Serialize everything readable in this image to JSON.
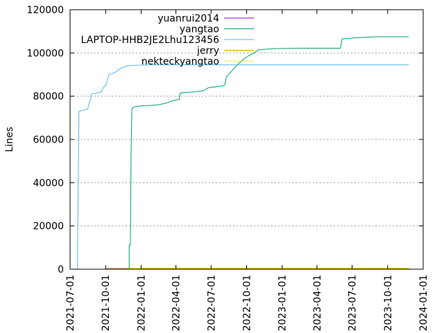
{
  "chart_data": {
    "type": "line",
    "title": "",
    "xlabel": "",
    "ylabel": "Lines",
    "x_type": "date",
    "xlim": [
      "2021-07-01",
      "2024-01-01"
    ],
    "ylim": [
      0,
      120000
    ],
    "y_ticks": [
      0,
      20000,
      40000,
      60000,
      80000,
      100000,
      120000
    ],
    "y_tick_labels": [
      "0",
      "20000",
      "40000",
      "60000",
      "80000",
      "100000",
      "120000"
    ],
    "x_ticks": [
      "2021-07-01",
      "2021-10-01",
      "2022-01-01",
      "2022-04-01",
      "2022-07-01",
      "2022-10-01",
      "2023-01-01",
      "2023-04-01",
      "2023-07-01",
      "2023-10-01",
      "2024-01-01"
    ],
    "x_tick_labels": [
      "2021-07-01",
      "2021-10-01",
      "2022-01-01",
      "2022-04-01",
      "2022-07-01",
      "2022-10-01",
      "2023-01-01",
      "2023-04-01",
      "2023-07-01",
      "2023-10-01",
      "2024-01-01"
    ],
    "grid": "horizontal dotted",
    "legend_position": "top-right",
    "series": [
      {
        "name": "yuanrui2014",
        "color": "#9400d3",
        "points": [
          [
            "2021-10-01",
            300
          ],
          [
            "2023-11-15",
            300
          ]
        ]
      },
      {
        "name": "yangtao",
        "color": "#009e73",
        "points": [
          [
            "2021-10-01",
            0
          ],
          [
            "2021-12-01",
            0
          ],
          [
            "2021-12-01",
            11000
          ],
          [
            "2021-12-04",
            11000
          ],
          [
            "2021-12-05",
            30000
          ],
          [
            "2021-12-06",
            55000
          ],
          [
            "2021-12-08",
            74000
          ],
          [
            "2021-12-12",
            75000
          ],
          [
            "2021-12-31",
            75500
          ],
          [
            "2022-02-15",
            76000
          ],
          [
            "2022-03-10",
            77000
          ],
          [
            "2022-03-25",
            78000
          ],
          [
            "2022-04-10",
            78500
          ],
          [
            "2022-04-12",
            81500
          ],
          [
            "2022-05-20",
            82000
          ],
          [
            "2022-06-10",
            82500
          ],
          [
            "2022-06-25",
            84000
          ],
          [
            "2022-07-20",
            84500
          ],
          [
            "2022-08-05",
            85000
          ],
          [
            "2022-08-10",
            89000
          ],
          [
            "2022-08-25",
            92000
          ],
          [
            "2022-09-10",
            95000
          ],
          [
            "2022-09-25",
            97500
          ],
          [
            "2022-10-05",
            98500
          ],
          [
            "2022-10-20",
            100000
          ],
          [
            "2022-11-01",
            101500
          ],
          [
            "2022-12-10",
            102000
          ],
          [
            "2023-02-15",
            102200
          ],
          [
            "2023-06-01",
            102200
          ],
          [
            "2023-06-05",
            106500
          ],
          [
            "2023-07-10",
            107000
          ],
          [
            "2023-09-01",
            107500
          ],
          [
            "2023-11-25",
            107500
          ]
        ]
      },
      {
        "name": "LAPTOP-HHB2JE2Lhu123456",
        "color": "#56b4e9",
        "points": [
          [
            "2021-07-20",
            0
          ],
          [
            "2021-07-21",
            20000
          ],
          [
            "2021-07-24",
            73000
          ],
          [
            "2021-08-15",
            74000
          ],
          [
            "2021-08-22",
            78000
          ],
          [
            "2021-08-25",
            81000
          ],
          [
            "2021-09-10",
            81500
          ],
          [
            "2021-09-20",
            82000
          ],
          [
            "2021-09-25",
            84000
          ],
          [
            "2021-10-01",
            85000
          ],
          [
            "2021-10-05",
            87000
          ],
          [
            "2021-10-10",
            90000
          ],
          [
            "2021-10-25",
            91000
          ],
          [
            "2021-11-10",
            93000
          ],
          [
            "2021-11-25",
            94000
          ],
          [
            "2021-12-20",
            94300
          ],
          [
            "2022-02-01",
            94500
          ],
          [
            "2022-08-15",
            94500
          ],
          [
            "2023-11-25",
            94500
          ]
        ]
      },
      {
        "name": "jerry",
        "color": "#e69f00",
        "points": [
          [
            "2021-10-01",
            200
          ],
          [
            "2021-12-01",
            300
          ],
          [
            "2023-11-25",
            300
          ]
        ]
      },
      {
        "name": "nekteckyangtao",
        "color": "#f0e442",
        "points": [
          [
            "2021-12-01",
            0
          ],
          [
            "2022-01-01",
            500
          ],
          [
            "2023-11-25",
            500
          ]
        ]
      }
    ]
  }
}
